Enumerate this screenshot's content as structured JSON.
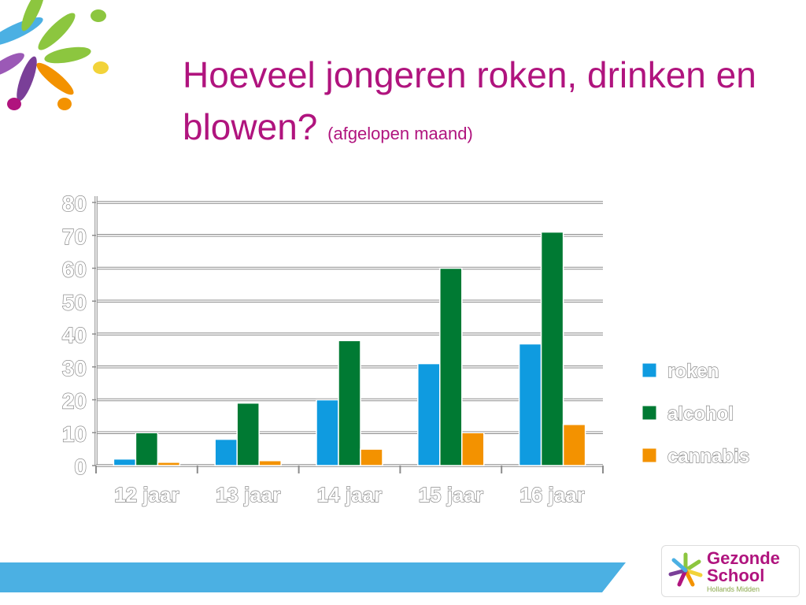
{
  "title": {
    "main": "Hoeveel jongeren roken, drinken en blowen?",
    "sub": "(afgelopen maand)"
  },
  "brand": {
    "line1": "Gezonde",
    "line2": "School",
    "line3": "Hollands Midden",
    "accent_color": "#b0147e",
    "band_color": "#4bb0e3"
  },
  "chart_data": {
    "type": "bar",
    "categories": [
      "12 jaar",
      "13 jaar",
      "14 jaar",
      "15 jaar",
      "16 jaar"
    ],
    "series": [
      {
        "name": "roken",
        "color": "#0f9be0",
        "values": [
          2,
          8,
          20,
          31,
          37
        ]
      },
      {
        "name": "alcohol",
        "color": "#007a33",
        "values": [
          10,
          19,
          38,
          60,
          71
        ]
      },
      {
        "name": "cannabis",
        "color": "#f39200",
        "values": [
          1,
          1.5,
          5,
          10,
          12.5
        ]
      }
    ],
    "yticks": [
      "0",
      "10",
      "20",
      "30",
      "40",
      "50",
      "60",
      "70",
      "80"
    ],
    "ylim": [
      0,
      80
    ],
    "grid": true,
    "legend": "right"
  }
}
